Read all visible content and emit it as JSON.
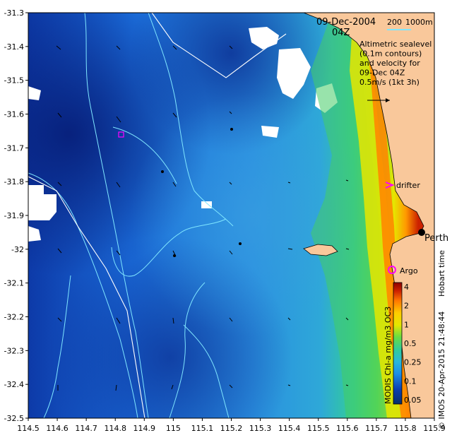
{
  "map": {
    "date_title": "09-Dec-2004",
    "time_title": "04Z",
    "scale_label_left": "200",
    "scale_label_right": "1000m",
    "legend_lines": [
      "Altimetric sealevel",
      "(0.1m contours)",
      "and velocity for",
      "09-Dec 04Z",
      "0.5m/s (1kt 3h)"
    ],
    "drifter_label": "drifter",
    "argo_label": "Argo",
    "city_label": "Perth",
    "credit_side": "Hobart time",
    "credit_bottom": "© IMOS 20-Apr-2015 21:48:44",
    "colorbar_title": "MODIS Chl-a mg/m3 OC3",
    "colors": {
      "land": "#f9c89b",
      "deep_ocean": "#0a2a8f",
      "cloud": "#ffffff",
      "argo_marker": "#ff00ff",
      "drifter_marker": "#ff00ff",
      "contour": "#7fe6ff"
    }
  },
  "chart_data": {
    "type": "heatmap",
    "x_ticks": [
      "114.5",
      "114.6",
      "114.7",
      "114.8",
      "114.9",
      "115",
      "115.1",
      "115.2",
      "115.3",
      "115.4",
      "115.5",
      "115.6",
      "115.7",
      "115.8",
      "115.9"
    ],
    "y_ticks": [
      "-31.3",
      "-31.4",
      "-31.5",
      "-31.6",
      "-31.7",
      "-31.8",
      "-31.9",
      "-32",
      "-32.1",
      "-32.2",
      "-32.3",
      "-32.4",
      "-32.5"
    ],
    "xlim": [
      114.5,
      115.9
    ],
    "ylim": [
      -32.5,
      -31.3
    ],
    "colorbar_ticks": [
      "4",
      "2",
      "1",
      "0.5",
      "0.25",
      "0.1",
      "0.05"
    ],
    "colorbar_colors": [
      "#08306b",
      "#0b3fb0",
      "#1560d8",
      "#1e8fe8",
      "#2ab8d8",
      "#33cc99",
      "#44dd55",
      "#99e633",
      "#e6e600",
      "#ffcc00",
      "#ff9900",
      "#ff5500",
      "#cc2200",
      "#8b0000"
    ],
    "markers": [
      {
        "name": "drifter",
        "lon": 115.76,
        "lat": -31.82
      },
      {
        "name": "argo",
        "lon": 115.75,
        "lat": -32.08
      },
      {
        "name": "perth",
        "lon": 115.86,
        "lat": -31.95
      }
    ]
  }
}
